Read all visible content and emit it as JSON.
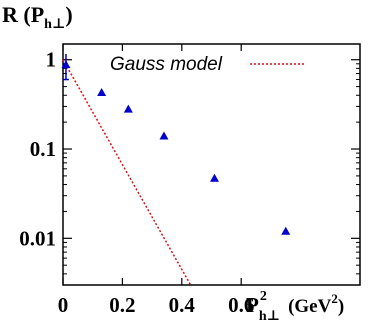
{
  "chart_data": {
    "type": "scatter",
    "ylabel": "R (P",
    "ylabel_sub": "h⊥",
    "ylabel_close": ")",
    "xlabel_main": "P",
    "xlabel_sup": "2",
    "xlabel_sub": "h⊥",
    "xunit_open": "(GeV",
    "xunit_sup": "2",
    "xunit_close": ")",
    "xlim": [
      0,
      1.0
    ],
    "y_scale": "log",
    "ylim": [
      0.003,
      1.5
    ],
    "x_ticks": [
      "0",
      "0.2",
      "0.4",
      "0.6"
    ],
    "y_ticks": [
      "1",
      "0.1",
      "0.01"
    ],
    "legend": {
      "label": "Gauss model",
      "position": "top-right"
    },
    "points": [
      {
        "x": 0.01,
        "y": 0.88,
        "err": 0.28
      },
      {
        "x": 0.13,
        "y": 0.43,
        "err": 0.0
      },
      {
        "x": 0.22,
        "y": 0.28,
        "err": 0.0
      },
      {
        "x": 0.34,
        "y": 0.14,
        "err": 0.0
      },
      {
        "x": 0.51,
        "y": 0.047,
        "err": 0.0
      },
      {
        "x": 0.75,
        "y": 0.012,
        "err": 0.0
      }
    ],
    "model_line": {
      "y_at_x0": 1.0,
      "slope_per_unit_x": -5.87
    },
    "colors": {
      "points": "#0000cc",
      "model": "#dd1111",
      "axes": "#000000"
    }
  }
}
